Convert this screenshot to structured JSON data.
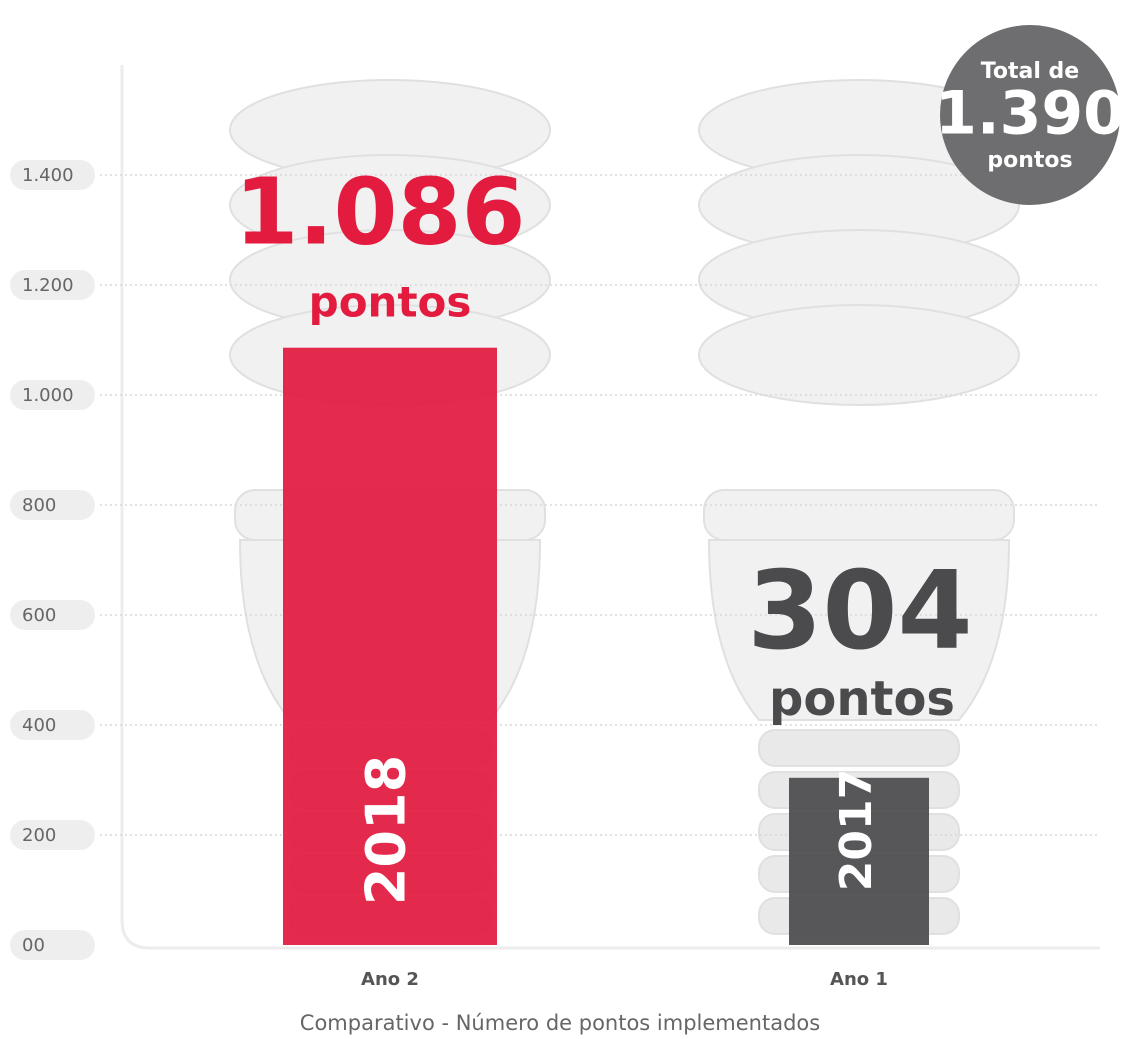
{
  "chart_data": {
    "type": "bar",
    "title": "Comparativo - Número de pontos implementados",
    "categories": [
      "Ano 2",
      "Ano 1"
    ],
    "bar_labels": [
      "2018",
      "2017"
    ],
    "values": [
      1086,
      304
    ],
    "value_labels": [
      "1.086",
      "304"
    ],
    "value_unit": "pontos",
    "colors": [
      "#e31b3f",
      "#4b4b4d"
    ],
    "ylim": [
      0,
      1600
    ],
    "yticks": [
      {
        "value": 0,
        "label": "00"
      },
      200,
      400,
      600,
      800,
      {
        "value": 1000,
        "label": "1.000"
      },
      {
        "value": 1200,
        "label": "1.200"
      },
      {
        "value": 1400,
        "label": "1.400"
      }
    ],
    "grid": true,
    "total": {
      "prefix": "Total de",
      "value": 1390,
      "label": "1.390",
      "suffix": "pontos"
    }
  }
}
